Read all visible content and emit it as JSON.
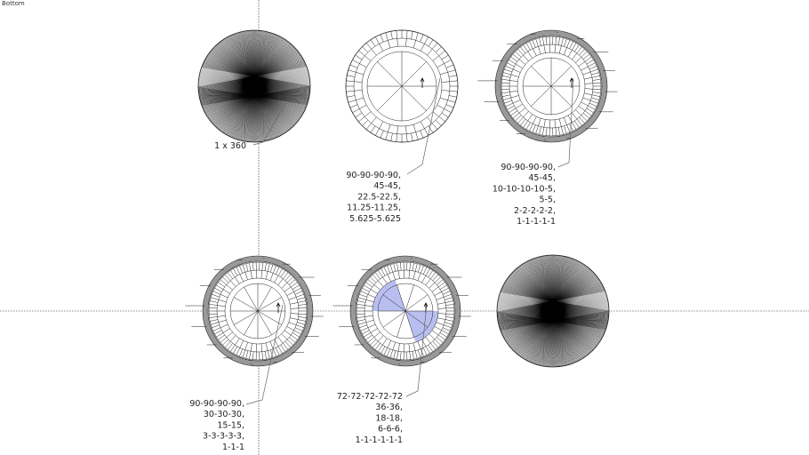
{
  "view_label": "Bottom",
  "colors": {
    "highlight": "#b8bff0",
    "ring": "#999999",
    "line": "#222222",
    "axis": "#555555"
  },
  "figures": [
    {
      "style": "dense",
      "label_lines": [
        "1 x 360"
      ]
    },
    {
      "style": "segmented-open",
      "label_lines": [
        "90-90-90-90,",
        "45-45,",
        "22.5-22.5,",
        "11.25-11.25,",
        "5.625-5.625"
      ]
    },
    {
      "style": "segmented-ringed",
      "label_lines": [
        "90-90-90-90,",
        "45-45,",
        "10-10-10-10-5,",
        "5-5,",
        "2-2-2-2-2,",
        "1-1-1-1-1"
      ]
    },
    {
      "style": "segmented-ringed",
      "label_lines": [
        "90-90-90-90,",
        "30-30-30,",
        "15-15,",
        "3-3-3-3-3,",
        "1-1-1"
      ]
    },
    {
      "style": "segmented-ringed-highlight",
      "label_lines": [
        "72-72-72-72-72",
        "36-36,",
        "18-18,",
        "6-6-6,",
        "1-1-1-1-1-1"
      ]
    },
    {
      "style": "dense",
      "label_lines": []
    }
  ]
}
